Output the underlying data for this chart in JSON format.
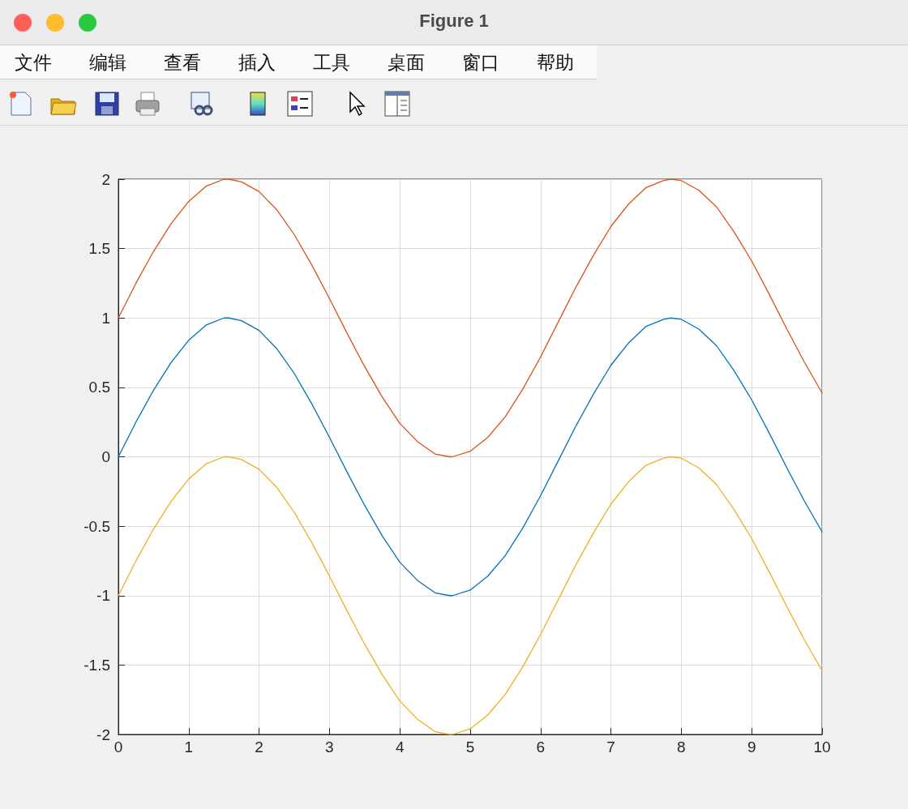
{
  "chart_data": {
    "type": "line",
    "title": "Figure 1",
    "annotations": [
      "文件",
      "编辑",
      "查看",
      "插入",
      "工具",
      "桌面",
      "窗口",
      "帮助"
    ],
    "x": [
      0,
      0.25,
      0.5,
      0.75,
      1,
      1.25,
      1.5,
      1.57,
      1.75,
      2,
      2.25,
      2.5,
      2.75,
      3,
      3.25,
      3.5,
      3.75,
      4,
      4.25,
      4.5,
      4.71,
      4.75,
      5,
      5.25,
      5.5,
      5.75,
      6,
      6.25,
      6.5,
      6.75,
      7,
      7.25,
      7.5,
      7.75,
      7.85,
      8,
      8.25,
      8.5,
      8.75,
      9,
      9.25,
      9.5,
      9.75,
      10
    ],
    "series": [
      {
        "color": "#d95319",
        "values": [
          1,
          1.25,
          1.48,
          1.68,
          1.84,
          1.95,
          2,
          2,
          1.98,
          1.91,
          1.78,
          1.6,
          1.38,
          1.14,
          0.89,
          0.65,
          0.43,
          0.24,
          0.11,
          0.02,
          0,
          0,
          0.04,
          0.14,
          0.29,
          0.49,
          0.72,
          0.97,
          1.22,
          1.45,
          1.66,
          1.82,
          1.94,
          1.99,
          2,
          1.99,
          1.92,
          1.8,
          1.62,
          1.41,
          1.17,
          0.92,
          0.68,
          0.46
        ]
      },
      {
        "color": "#0072bd",
        "values": [
          0,
          0.25,
          0.48,
          0.68,
          0.84,
          0.95,
          1,
          1,
          0.98,
          0.91,
          0.78,
          0.6,
          0.38,
          0.14,
          -0.11,
          -0.35,
          -0.57,
          -0.76,
          -0.89,
          -0.98,
          -1,
          -1,
          -0.96,
          -0.86,
          -0.71,
          -0.51,
          -0.28,
          -0.03,
          0.22,
          0.45,
          0.66,
          0.82,
          0.94,
          0.99,
          1,
          0.99,
          0.92,
          0.8,
          0.62,
          0.41,
          0.17,
          -0.08,
          -0.32,
          -0.54
        ]
      },
      {
        "color": "#edb120",
        "values": [
          -1,
          -0.75,
          -0.52,
          -0.32,
          -0.16,
          -0.05,
          0,
          0,
          -0.02,
          -0.09,
          -0.22,
          -0.4,
          -0.62,
          -0.86,
          -1.11,
          -1.35,
          -1.57,
          -1.76,
          -1.89,
          -1.98,
          -2,
          -2,
          -1.96,
          -1.86,
          -1.71,
          -1.51,
          -1.28,
          -1.03,
          -0.78,
          -0.55,
          -0.34,
          -0.18,
          -0.06,
          -0.01,
          0,
          -0.01,
          -0.08,
          -0.2,
          -0.38,
          -0.59,
          -0.83,
          -1.08,
          -1.32,
          -1.54
        ]
      }
    ],
    "xlim": [
      0,
      10
    ],
    "xticks": [
      0,
      1,
      2,
      3,
      4,
      5,
      6,
      7,
      8,
      9,
      10
    ],
    "ylim": [
      -2,
      2
    ],
    "yticks": [
      -2,
      -1.5,
      -1,
      -0.5,
      0,
      0.5,
      1,
      1.5,
      2
    ],
    "grid": true
  }
}
